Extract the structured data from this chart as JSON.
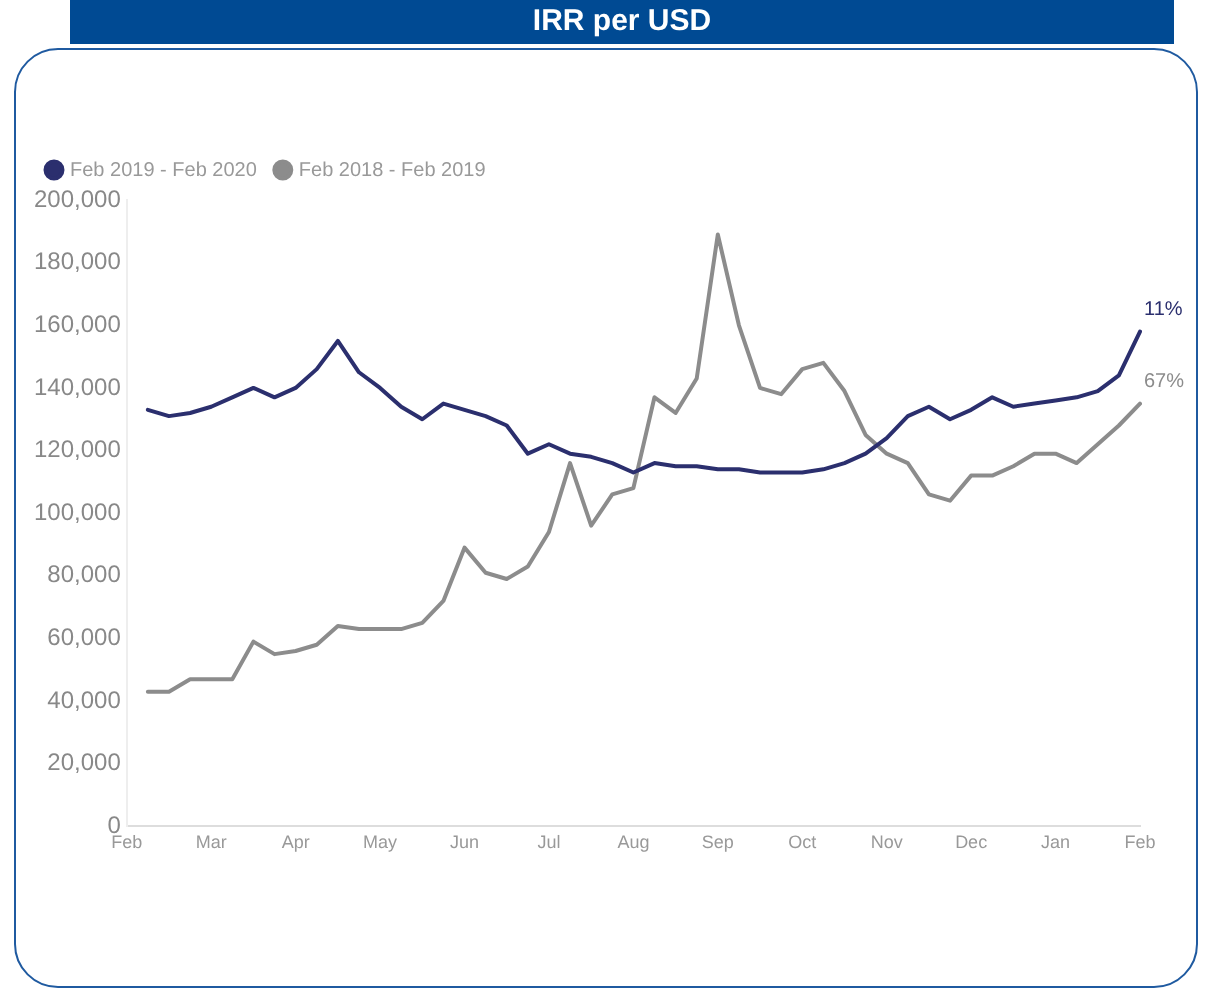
{
  "chart_data": {
    "type": "line",
    "title": "IRR per USD",
    "categories": [
      "Feb",
      null,
      null,
      null,
      "Mar",
      null,
      null,
      null,
      "Apr",
      null,
      null,
      null,
      "May",
      null,
      null,
      null,
      "Jun",
      null,
      null,
      null,
      "Jul",
      null,
      null,
      null,
      "Aug",
      null,
      null,
      null,
      "Sep",
      null,
      null,
      null,
      "Oct",
      null,
      null,
      null,
      "Nov",
      null,
      null,
      null,
      "Dec",
      null,
      null,
      null,
      "Jan",
      null,
      null,
      null,
      "Feb"
    ],
    "ylim": [
      0,
      200000
    ],
    "yticks": [
      {
        "value": 0,
        "label": "0"
      },
      {
        "value": 20000,
        "label": "20,000"
      },
      {
        "value": 40000,
        "label": "40,000"
      },
      {
        "value": 60000,
        "label": "60,000"
      },
      {
        "value": 80000,
        "label": "80,000"
      },
      {
        "value": 100000,
        "label": "100,000"
      },
      {
        "value": 120000,
        "label": "120,000"
      },
      {
        "value": 140000,
        "label": "140,000"
      },
      {
        "value": 160000,
        "label": "160,000"
      },
      {
        "value": 180000,
        "label": "180,000"
      },
      {
        "value": 200000,
        "label": "200,000"
      }
    ],
    "grid": false,
    "legend": "top left",
    "marker": "none",
    "line_style": "solid",
    "series": [
      {
        "name": "Feb 2019 - Feb 2020",
        "color": "#2b2f6e",
        "values": [
          null,
          133000,
          131000,
          132000,
          134000,
          137000,
          140000,
          137000,
          140000,
          146000,
          155000,
          145000,
          140000,
          134000,
          130000,
          135000,
          133000,
          131000,
          128000,
          119000,
          122000,
          119000,
          118000,
          116000,
          113000,
          116000,
          115000,
          115000,
          114000,
          114000,
          113000,
          113000,
          113000,
          114000,
          116000,
          119000,
          124000,
          131000,
          134000,
          130000,
          133000,
          137000,
          134000,
          135000,
          136000,
          137000,
          139000,
          144000,
          158000
        ]
      },
      {
        "name": "Feb 2018 - Feb 2019",
        "color": "#8c8c8c",
        "values": [
          null,
          43000,
          43000,
          47000,
          47000,
          47000,
          59000,
          55000,
          56000,
          58000,
          64000,
          63000,
          63000,
          63000,
          65000,
          72000,
          89000,
          81000,
          79000,
          83000,
          94000,
          116000,
          96000,
          106000,
          108000,
          137000,
          132000,
          143000,
          189000,
          160000,
          140000,
          138000,
          146000,
          148000,
          139000,
          125000,
          119000,
          116000,
          106000,
          104000,
          112000,
          112000,
          115000,
          119000,
          119000,
          116000,
          122000,
          128000,
          135000
        ]
      }
    ],
    "annotations": [
      "11%",
      "67%"
    ]
  }
}
